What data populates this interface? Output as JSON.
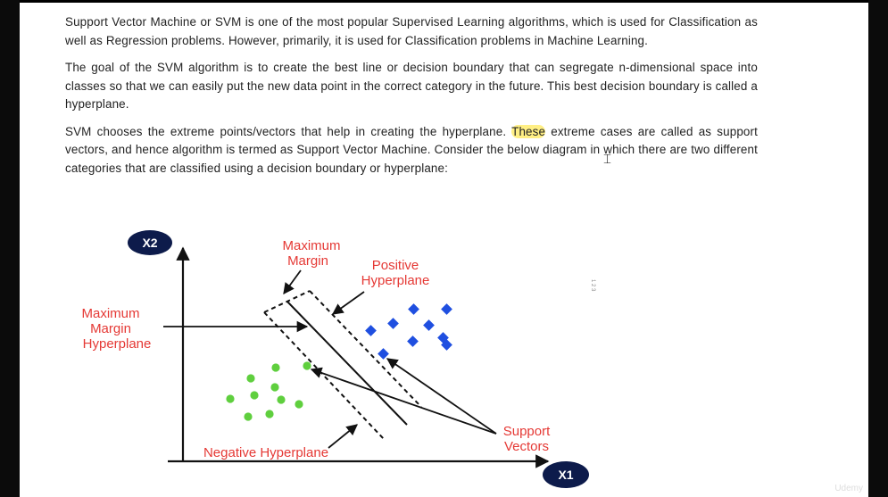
{
  "article": {
    "p1": "Support Vector Machine or SVM is one of the most popular Supervised Learning algorithms, which is used for Classification as well as Regression problems. However, primarily, it is used for Classification problems in Machine Learning.",
    "p2": "The goal of the SVM algorithm is to create the best line or decision boundary that can segregate n-dimensional space into classes so that we can easily put the new data point in the correct category in the future. This best decision boundary is called a hyperplane.",
    "p3_before": "SVM chooses the extreme points/vectors that help in creating the hyperplane. ",
    "p3_highlight": "These",
    "p3_after": " extreme cases are called as support vectors, and hence algorithm is termed as Support Vector Machine. Consider the below diagram in which there are two different categories that are classified using a decision boundary or hyperplane:"
  },
  "figure": {
    "x2_label": "X2",
    "x1_label": "X1",
    "max_margin": [
      "Maximum",
      "Margin"
    ],
    "positive_hyperplane": [
      "Positive",
      "Hyperplane"
    ],
    "max_margin_hyperplane": [
      "Maximum",
      "Margin",
      "Hyperplane"
    ],
    "negative_hyperplane": "Negative Hyperplane",
    "support_vectors": [
      "Support",
      "Vectors"
    ],
    "colors": {
      "label_red": "#e53935",
      "axis_badge": "#0d1b4b",
      "positive_points": "#1f4fe0",
      "negative_points": "#5fcf3e"
    }
  },
  "watermark": "Udemy",
  "side_ticks": "1 2 3"
}
